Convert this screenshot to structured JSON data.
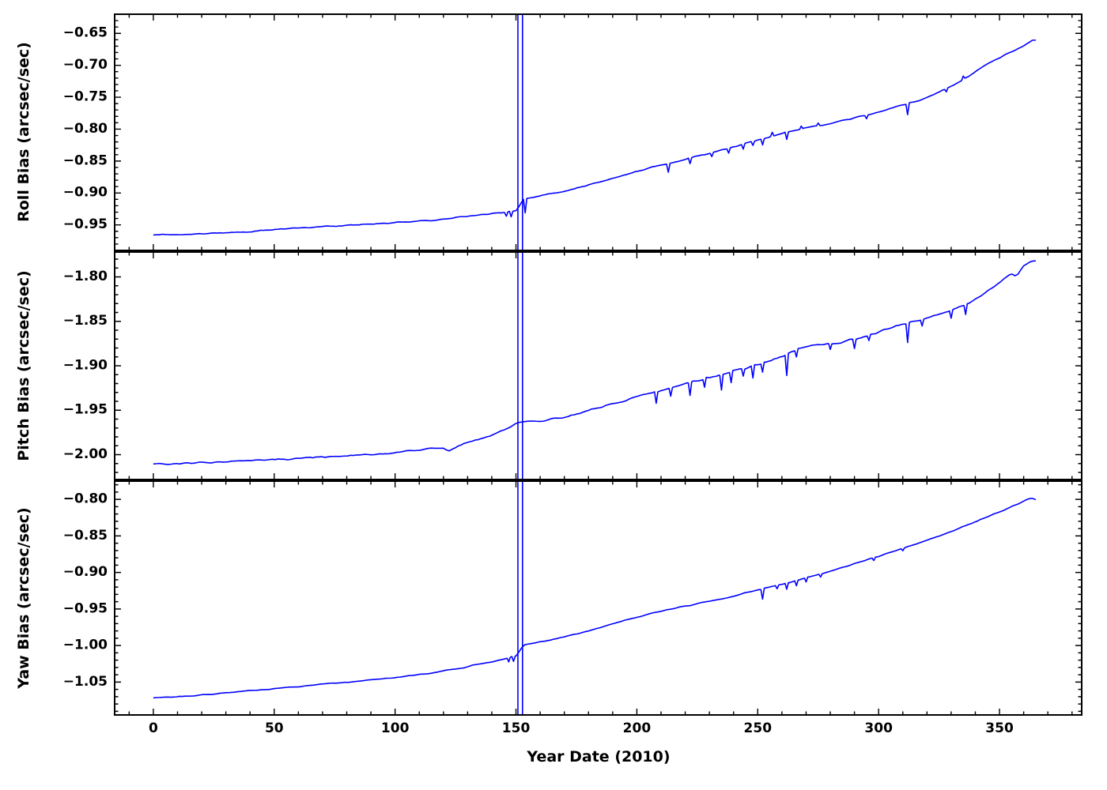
{
  "figure": {
    "line_color": "#0000ff",
    "axis_color": "#000000",
    "background": "#ffffff"
  },
  "chart_data": [
    {
      "type": "line",
      "title": "",
      "ylabel": "Roll Bias (arcsec/sec)",
      "xlabel": "",
      "grid": false,
      "xlim": [
        -16,
        384
      ],
      "ylim": [
        -0.99,
        -0.62
      ],
      "xticks": [
        0,
        50,
        100,
        150,
        200,
        250,
        300,
        350
      ],
      "yticks": [
        -0.65,
        -0.7,
        -0.75,
        -0.8,
        -0.85,
        -0.9,
        -0.95
      ],
      "x_minor_step": 10,
      "y_minor_step": 0.01,
      "noise_amp": 0.0013,
      "full_spikes": [
        150.8,
        152.7
      ],
      "minor_spikes": [
        [
          146,
          -0.006
        ],
        [
          148,
          -0.008
        ],
        [
          153.8,
          -0.022
        ],
        [
          213,
          -0.013
        ],
        [
          222,
          -0.009
        ],
        [
          231,
          -0.006
        ],
        [
          238,
          -0.007
        ],
        [
          244,
          -0.008
        ],
        [
          248,
          -0.006
        ],
        [
          252,
          -0.009
        ],
        [
          256,
          0.006
        ],
        [
          262,
          -0.011
        ],
        [
          268,
          0.005
        ],
        [
          275,
          0.004
        ],
        [
          295,
          -0.005
        ],
        [
          312,
          -0.017
        ],
        [
          328,
          -0.005
        ],
        [
          335,
          0.005
        ]
      ],
      "points": [
        [
          0,
          -0.9655
        ],
        [
          5,
          -0.965
        ],
        [
          10,
          -0.9648
        ],
        [
          15,
          -0.9645
        ],
        [
          20,
          -0.9638
        ],
        [
          25,
          -0.9632
        ],
        [
          30,
          -0.9625
        ],
        [
          35,
          -0.9615
        ],
        [
          40,
          -0.9602
        ],
        [
          45,
          -0.9585
        ],
        [
          50,
          -0.9568
        ],
        [
          55,
          -0.9558
        ],
        [
          60,
          -0.9548
        ],
        [
          65,
          -0.954
        ],
        [
          70,
          -0.953
        ],
        [
          75,
          -0.952
        ],
        [
          80,
          -0.951
        ],
        [
          85,
          -0.95
        ],
        [
          90,
          -0.949
        ],
        [
          95,
          -0.948
        ],
        [
          100,
          -0.9468
        ],
        [
          105,
          -0.9455
        ],
        [
          110,
          -0.944
        ],
        [
          115,
          -0.9425
        ],
        [
          120,
          -0.9408
        ],
        [
          125,
          -0.9382
        ],
        [
          130,
          -0.936
        ],
        [
          135,
          -0.934
        ],
        [
          140,
          -0.9322
        ],
        [
          145,
          -0.9302
        ],
        [
          150.2,
          -0.928
        ],
        [
          153,
          -0.91
        ],
        [
          155,
          -0.9085
        ],
        [
          160,
          -0.9045
        ],
        [
          165,
          -0.9008
        ],
        [
          170,
          -0.8968
        ],
        [
          175,
          -0.8922
        ],
        [
          180,
          -0.8872
        ],
        [
          185,
          -0.8822
        ],
        [
          190,
          -0.877
        ],
        [
          195,
          -0.8715
        ],
        [
          200,
          -0.866
        ],
        [
          205,
          -0.8612
        ],
        [
          210,
          -0.8565
        ],
        [
          215,
          -0.8525
        ],
        [
          220,
          -0.8472
        ],
        [
          225,
          -0.8428
        ],
        [
          230,
          -0.8382
        ],
        [
          235,
          -0.833
        ],
        [
          240,
          -0.828
        ],
        [
          245,
          -0.8225
        ],
        [
          250,
          -0.817
        ],
        [
          255,
          -0.812
        ],
        [
          260,
          -0.807
        ],
        [
          265,
          -0.802
        ],
        [
          270,
          -0.798
        ],
        [
          275,
          -0.795
        ],
        [
          280,
          -0.791
        ],
        [
          285,
          -0.787
        ],
        [
          290,
          -0.782
        ],
        [
          295,
          -0.778
        ],
        [
          300,
          -0.773
        ],
        [
          305,
          -0.768
        ],
        [
          310,
          -0.7625
        ],
        [
          315,
          -0.757
        ],
        [
          320,
          -0.75
        ],
        [
          325,
          -0.742
        ],
        [
          330,
          -0.733
        ],
        [
          335,
          -0.722
        ],
        [
          340,
          -0.71
        ],
        [
          345,
          -0.698
        ],
        [
          350,
          -0.689
        ],
        [
          352,
          -0.684
        ],
        [
          355,
          -0.68
        ],
        [
          358,
          -0.673
        ],
        [
          360,
          -0.669
        ],
        [
          362,
          -0.6645
        ],
        [
          364,
          -0.6595
        ],
        [
          365,
          -0.66
        ]
      ]
    },
    {
      "type": "line",
      "title": "",
      "ylabel": "Pitch Bias (arcsec/sec)",
      "xlabel": "",
      "grid": false,
      "xlim": [
        -16,
        384
      ],
      "ylim": [
        -2.028,
        -1.772
      ],
      "xticks": [
        0,
        50,
        100,
        150,
        200,
        250,
        300,
        350
      ],
      "yticks": [
        -1.8,
        -1.85,
        -1.9,
        -1.95,
        -2.0
      ],
      "x_minor_step": 10,
      "y_minor_step": 0.01,
      "noise_amp": 0.0016,
      "full_spikes": [
        150.8,
        152.7
      ],
      "minor_spikes": [
        [
          208,
          -0.013
        ],
        [
          214,
          -0.009
        ],
        [
          222,
          -0.014
        ],
        [
          228,
          -0.01
        ],
        [
          235,
          -0.017
        ],
        [
          239,
          -0.013
        ],
        [
          244,
          -0.008
        ],
        [
          248,
          -0.014
        ],
        [
          252,
          -0.01
        ],
        [
          262,
          -0.024
        ],
        [
          266,
          -0.008
        ],
        [
          280,
          -0.006
        ],
        [
          290,
          -0.01
        ],
        [
          296,
          -0.006
        ],
        [
          312,
          -0.021
        ],
        [
          318,
          -0.007
        ],
        [
          330,
          -0.009
        ],
        [
          336,
          -0.011
        ]
      ],
      "points": [
        [
          0,
          -2.011
        ],
        [
          10,
          -2.01
        ],
        [
          20,
          -2.009
        ],
        [
          30,
          -2.008
        ],
        [
          40,
          -2.007
        ],
        [
          50,
          -2.006
        ],
        [
          60,
          -2.004
        ],
        [
          70,
          -2.002
        ],
        [
          80,
          -2.001
        ],
        [
          90,
          -2.0
        ],
        [
          100,
          -1.998
        ],
        [
          105,
          -1.996
        ],
        [
          110,
          -1.994
        ],
        [
          115,
          -1.993
        ],
        [
          120,
          -1.992
        ],
        [
          122,
          -1.996
        ],
        [
          124,
          -1.994
        ],
        [
          126,
          -1.99
        ],
        [
          130,
          -1.986
        ],
        [
          135,
          -1.982
        ],
        [
          140,
          -1.978
        ],
        [
          145,
          -1.973
        ],
        [
          148,
          -1.968
        ],
        [
          150.2,
          -1.965
        ],
        [
          153,
          -1.964
        ],
        [
          155,
          -1.963
        ],
        [
          160,
          -1.962
        ],
        [
          165,
          -1.96
        ],
        [
          170,
          -1.957
        ],
        [
          175,
          -1.954
        ],
        [
          180,
          -1.95
        ],
        [
          185,
          -1.946
        ],
        [
          190,
          -1.942
        ],
        [
          195,
          -1.939
        ],
        [
          200,
          -1.935
        ],
        [
          205,
          -1.931
        ],
        [
          210,
          -1.928
        ],
        [
          215,
          -1.924
        ],
        [
          220,
          -1.92
        ],
        [
          225,
          -1.917
        ],
        [
          230,
          -1.913
        ],
        [
          235,
          -1.91
        ],
        [
          240,
          -1.906
        ],
        [
          245,
          -1.903
        ],
        [
          250,
          -1.899
        ],
        [
          255,
          -1.895
        ],
        [
          260,
          -1.89
        ],
        [
          265,
          -1.883
        ],
        [
          268,
          -1.879
        ],
        [
          270,
          -1.878
        ],
        [
          275,
          -1.876
        ],
        [
          280,
          -1.875
        ],
        [
          285,
          -1.873
        ],
        [
          290,
          -1.87
        ],
        [
          295,
          -1.866
        ],
        [
          300,
          -1.862
        ],
        [
          305,
          -1.857
        ],
        [
          310,
          -1.853
        ],
        [
          315,
          -1.85
        ],
        [
          320,
          -1.846
        ],
        [
          325,
          -1.842
        ],
        [
          330,
          -1.838
        ],
        [
          335,
          -1.832
        ],
        [
          340,
          -1.825
        ],
        [
          345,
          -1.816
        ],
        [
          350,
          -1.807
        ],
        [
          353,
          -1.8
        ],
        [
          355,
          -1.796
        ],
        [
          357,
          -1.799
        ],
        [
          360,
          -1.787
        ],
        [
          363,
          -1.783
        ],
        [
          365,
          -1.782
        ]
      ]
    },
    {
      "type": "line",
      "title": "",
      "ylabel": "Yaw Bias (arcsec/sec)",
      "xlabel": "Year Date (2010)",
      "grid": false,
      "xlim": [
        -16,
        384
      ],
      "ylim": [
        -1.095,
        -0.775
      ],
      "xticks": [
        0,
        50,
        100,
        150,
        200,
        250,
        300,
        350
      ],
      "yticks": [
        -0.8,
        -0.85,
        -0.9,
        -0.95,
        -1.0,
        -1.05
      ],
      "x_minor_step": 10,
      "y_minor_step": 0.01,
      "noise_amp": 0.0009,
      "full_spikes": [
        150.8,
        152.7
      ],
      "minor_spikes": [
        [
          147,
          -0.006
        ],
        [
          149,
          -0.007
        ],
        [
          252,
          -0.014
        ],
        [
          258,
          -0.005
        ],
        [
          262,
          -0.009
        ],
        [
          266,
          -0.007
        ],
        [
          270,
          -0.006
        ],
        [
          276,
          -0.004
        ],
        [
          298,
          -0.004
        ],
        [
          310,
          -0.003
        ]
      ],
      "points": [
        [
          0,
          -1.072
        ],
        [
          10,
          -1.07
        ],
        [
          20,
          -1.068
        ],
        [
          30,
          -1.065
        ],
        [
          40,
          -1.062
        ],
        [
          50,
          -1.059
        ],
        [
          60,
          -1.056
        ],
        [
          70,
          -1.053
        ],
        [
          80,
          -1.05
        ],
        [
          90,
          -1.047
        ],
        [
          100,
          -1.044
        ],
        [
          110,
          -1.04
        ],
        [
          120,
          -1.035
        ],
        [
          125,
          -1.032
        ],
        [
          130,
          -1.029
        ],
        [
          135,
          -1.025
        ],
        [
          140,
          -1.022
        ],
        [
          145,
          -1.018
        ],
        [
          148,
          -1.0155
        ],
        [
          150.2,
          -1.014
        ],
        [
          153,
          -1.0
        ],
        [
          155,
          -0.998
        ],
        [
          160,
          -0.995
        ],
        [
          165,
          -0.992
        ],
        [
          170,
          -0.988
        ],
        [
          175,
          -0.984
        ],
        [
          180,
          -0.98
        ],
        [
          185,
          -0.975
        ],
        [
          190,
          -0.97
        ],
        [
          195,
          -0.9655
        ],
        [
          200,
          -0.961
        ],
        [
          205,
          -0.957
        ],
        [
          210,
          -0.953
        ],
        [
          215,
          -0.95
        ],
        [
          220,
          -0.946
        ],
        [
          225,
          -0.943
        ],
        [
          230,
          -0.939
        ],
        [
          235,
          -0.936
        ],
        [
          240,
          -0.932
        ],
        [
          245,
          -0.928
        ],
        [
          250,
          -0.924
        ],
        [
          255,
          -0.92
        ],
        [
          260,
          -0.916
        ],
        [
          265,
          -0.912
        ],
        [
          270,
          -0.907
        ],
        [
          275,
          -0.903
        ],
        [
          280,
          -0.898
        ],
        [
          285,
          -0.893
        ],
        [
          290,
          -0.888
        ],
        [
          295,
          -0.883
        ],
        [
          300,
          -0.878
        ],
        [
          305,
          -0.872
        ],
        [
          310,
          -0.867
        ],
        [
          315,
          -0.862
        ],
        [
          320,
          -0.856
        ],
        [
          325,
          -0.85
        ],
        [
          330,
          -0.844
        ],
        [
          335,
          -0.837
        ],
        [
          340,
          -0.831
        ],
        [
          345,
          -0.824
        ],
        [
          350,
          -0.817
        ],
        [
          355,
          -0.81
        ],
        [
          358,
          -0.806
        ],
        [
          360,
          -0.802
        ],
        [
          362,
          -0.799
        ],
        [
          364,
          -0.7985
        ],
        [
          365,
          -0.8
        ]
      ]
    }
  ]
}
